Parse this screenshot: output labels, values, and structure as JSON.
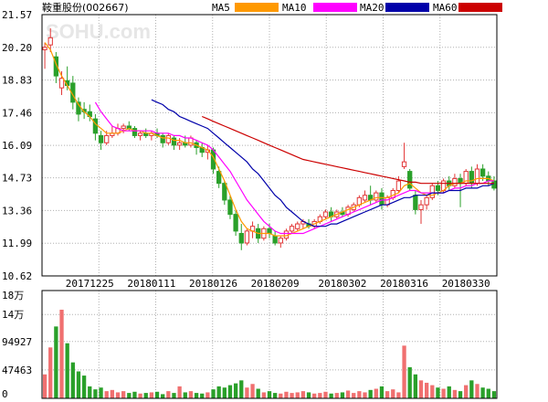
{
  "header": {
    "stock_name": "鞍重股份",
    "stock_code": "(002667)",
    "watermark": "SOHU.com",
    "legend": [
      {
        "label": "MA5",
        "color": "#ff9900"
      },
      {
        "label": "MA10",
        "color": "#ff00ff"
      },
      {
        "label": "MA20",
        "color": "#0000aa"
      },
      {
        "label": "MA60",
        "color": "#cc0000"
      }
    ]
  },
  "chart_data": [
    {
      "type": "candlestick",
      "title": "鞍重股份(002667)",
      "ylim": [
        10.62,
        21.57
      ],
      "y_ticks": [
        "21.57",
        "20.20",
        "18.83",
        "17.46",
        "16.09",
        "14.73",
        "13.36",
        "11.99",
        "10.62"
      ],
      "x_tick_labels": [
        "20171225",
        "20180111",
        "20180126",
        "20180209",
        "20180302",
        "20180316",
        "20180330"
      ],
      "x_tick_index": [
        8,
        19,
        30,
        41,
        53,
        64,
        75
      ],
      "grid": true,
      "up_color": "#e23636",
      "down_color": "#2aa02a",
      "candles": [
        {
          "o": 20.1,
          "h": 20.4,
          "l": 19.3,
          "c": 20.2
        },
        {
          "o": 20.3,
          "h": 21.0,
          "l": 20.0,
          "c": 20.6
        },
        {
          "o": 19.8,
          "h": 20.0,
          "l": 18.7,
          "c": 19.0
        },
        {
          "o": 18.5,
          "h": 19.2,
          "l": 18.2,
          "c": 18.9
        },
        {
          "o": 18.8,
          "h": 19.4,
          "l": 18.4,
          "c": 18.6
        },
        {
          "o": 18.7,
          "h": 19.0,
          "l": 17.6,
          "c": 17.9
        },
        {
          "o": 17.9,
          "h": 18.1,
          "l": 17.1,
          "c": 17.4
        },
        {
          "o": 17.6,
          "h": 17.9,
          "l": 17.2,
          "c": 17.5
        },
        {
          "o": 17.5,
          "h": 17.8,
          "l": 17.1,
          "c": 17.3
        },
        {
          "o": 17.2,
          "h": 17.4,
          "l": 16.3,
          "c": 16.6
        },
        {
          "o": 16.5,
          "h": 16.7,
          "l": 15.9,
          "c": 16.2
        },
        {
          "o": 16.2,
          "h": 16.7,
          "l": 16.1,
          "c": 16.5
        },
        {
          "o": 16.5,
          "h": 16.9,
          "l": 16.4,
          "c": 16.6
        },
        {
          "o": 16.6,
          "h": 17.0,
          "l": 16.5,
          "c": 16.8
        },
        {
          "o": 16.8,
          "h": 17.0,
          "l": 16.6,
          "c": 16.9
        },
        {
          "o": 16.9,
          "h": 17.1,
          "l": 16.7,
          "c": 16.8
        },
        {
          "o": 16.8,
          "h": 16.9,
          "l": 16.4,
          "c": 16.5
        },
        {
          "o": 16.5,
          "h": 16.7,
          "l": 16.3,
          "c": 16.6
        },
        {
          "o": 16.6,
          "h": 16.8,
          "l": 16.4,
          "c": 16.5
        },
        {
          "o": 16.5,
          "h": 16.7,
          "l": 16.3,
          "c": 16.6
        },
        {
          "o": 16.6,
          "h": 16.8,
          "l": 16.4,
          "c": 16.5
        },
        {
          "o": 16.5,
          "h": 16.6,
          "l": 16.0,
          "c": 16.2
        },
        {
          "o": 16.2,
          "h": 16.6,
          "l": 16.1,
          "c": 16.5
        },
        {
          "o": 16.4,
          "h": 16.5,
          "l": 15.9,
          "c": 16.1
        },
        {
          "o": 16.1,
          "h": 16.4,
          "l": 15.9,
          "c": 16.2
        },
        {
          "o": 16.2,
          "h": 16.5,
          "l": 16.0,
          "c": 16.1
        },
        {
          "o": 16.1,
          "h": 16.5,
          "l": 16.0,
          "c": 16.4
        },
        {
          "o": 16.2,
          "h": 16.3,
          "l": 15.7,
          "c": 16.0
        },
        {
          "o": 16.0,
          "h": 16.2,
          "l": 15.6,
          "c": 15.8
        },
        {
          "o": 15.8,
          "h": 16.1,
          "l": 15.5,
          "c": 15.9
        },
        {
          "o": 15.9,
          "h": 16.0,
          "l": 14.9,
          "c": 15.1
        },
        {
          "o": 15.0,
          "h": 15.2,
          "l": 14.3,
          "c": 14.5
        },
        {
          "o": 14.5,
          "h": 14.6,
          "l": 13.6,
          "c": 13.8
        },
        {
          "o": 13.8,
          "h": 14.0,
          "l": 13.0,
          "c": 13.2
        },
        {
          "o": 13.2,
          "h": 13.4,
          "l": 12.3,
          "c": 12.5
        },
        {
          "o": 12.4,
          "h": 12.8,
          "l": 11.7,
          "c": 12.0
        },
        {
          "o": 12.0,
          "h": 12.6,
          "l": 11.9,
          "c": 12.5
        },
        {
          "o": 12.5,
          "h": 12.9,
          "l": 12.2,
          "c": 12.7
        },
        {
          "o": 12.6,
          "h": 12.8,
          "l": 12.0,
          "c": 12.2
        },
        {
          "o": 12.2,
          "h": 12.7,
          "l": 12.1,
          "c": 12.6
        },
        {
          "o": 12.6,
          "h": 12.8,
          "l": 12.2,
          "c": 12.4
        },
        {
          "o": 12.3,
          "h": 12.5,
          "l": 11.9,
          "c": 12.0
        },
        {
          "o": 12.0,
          "h": 12.3,
          "l": 11.8,
          "c": 12.2
        },
        {
          "o": 12.2,
          "h": 12.6,
          "l": 12.1,
          "c": 12.5
        },
        {
          "o": 12.5,
          "h": 12.8,
          "l": 12.4,
          "c": 12.7
        },
        {
          "o": 12.6,
          "h": 12.9,
          "l": 12.5,
          "c": 12.8
        },
        {
          "o": 12.8,
          "h": 13.0,
          "l": 12.6,
          "c": 12.9
        },
        {
          "o": 12.8,
          "h": 13.0,
          "l": 12.6,
          "c": 12.7
        },
        {
          "o": 12.7,
          "h": 13.0,
          "l": 12.6,
          "c": 12.9
        },
        {
          "o": 12.9,
          "h": 13.2,
          "l": 12.8,
          "c": 13.1
        },
        {
          "o": 13.1,
          "h": 13.4,
          "l": 13.0,
          "c": 13.3
        },
        {
          "o": 13.3,
          "h": 13.5,
          "l": 12.9,
          "c": 13.1
        },
        {
          "o": 13.1,
          "h": 13.4,
          "l": 13.0,
          "c": 13.3
        },
        {
          "o": 13.3,
          "h": 13.5,
          "l": 13.1,
          "c": 13.2
        },
        {
          "o": 13.2,
          "h": 13.6,
          "l": 13.1,
          "c": 13.5
        },
        {
          "o": 13.4,
          "h": 13.7,
          "l": 13.3,
          "c": 13.6
        },
        {
          "o": 13.6,
          "h": 14.0,
          "l": 13.5,
          "c": 13.9
        },
        {
          "o": 13.8,
          "h": 14.2,
          "l": 13.7,
          "c": 14.0
        },
        {
          "o": 14.0,
          "h": 14.4,
          "l": 13.6,
          "c": 13.8
        },
        {
          "o": 13.8,
          "h": 14.2,
          "l": 13.7,
          "c": 14.1
        },
        {
          "o": 14.1,
          "h": 14.3,
          "l": 13.4,
          "c": 13.6
        },
        {
          "o": 13.6,
          "h": 14.0,
          "l": 13.5,
          "c": 13.9
        },
        {
          "o": 13.9,
          "h": 14.3,
          "l": 13.8,
          "c": 14.2
        },
        {
          "o": 14.2,
          "h": 14.8,
          "l": 14.1,
          "c": 14.6
        },
        {
          "o": 15.2,
          "h": 16.2,
          "l": 15.1,
          "c": 15.4
        },
        {
          "o": 15.0,
          "h": 15.1,
          "l": 14.2,
          "c": 14.3
        },
        {
          "o": 14.0,
          "h": 14.2,
          "l": 13.2,
          "c": 13.4
        },
        {
          "o": 13.4,
          "h": 13.8,
          "l": 12.8,
          "c": 13.6
        },
        {
          "o": 13.6,
          "h": 14.0,
          "l": 13.4,
          "c": 13.9
        },
        {
          "o": 13.9,
          "h": 14.5,
          "l": 13.8,
          "c": 14.4
        },
        {
          "o": 14.4,
          "h": 14.6,
          "l": 14.0,
          "c": 14.2
        },
        {
          "o": 14.2,
          "h": 14.7,
          "l": 14.1,
          "c": 14.6
        },
        {
          "o": 14.6,
          "h": 14.8,
          "l": 14.2,
          "c": 14.4
        },
        {
          "o": 14.4,
          "h": 14.9,
          "l": 14.3,
          "c": 14.7
        },
        {
          "o": 14.7,
          "h": 14.9,
          "l": 13.5,
          "c": 14.5
        },
        {
          "o": 14.5,
          "h": 15.1,
          "l": 14.4,
          "c": 15.0
        },
        {
          "o": 15.0,
          "h": 15.2,
          "l": 14.3,
          "c": 14.5
        },
        {
          "o": 14.5,
          "h": 15.3,
          "l": 14.4,
          "c": 15.1
        },
        {
          "o": 15.1,
          "h": 15.3,
          "l": 14.6,
          "c": 14.8
        },
        {
          "o": 14.8,
          "h": 15.0,
          "l": 14.4,
          "c": 14.6
        },
        {
          "o": 14.6,
          "h": 14.8,
          "l": 14.2,
          "c": 14.3
        }
      ],
      "series": [
        {
          "name": "MA5",
          "color": "#ff9900",
          "values": [
            20.4,
            20.1,
            19.5,
            19.0,
            18.6,
            18.2,
            17.8,
            17.5,
            17.3,
            17.0,
            16.8,
            16.6,
            16.6,
            16.6,
            16.7,
            16.8,
            16.7,
            16.7,
            16.6,
            16.6,
            16.5,
            16.4,
            16.4,
            16.3,
            16.3,
            16.2,
            16.2,
            16.1,
            16.0,
            15.9,
            15.6,
            15.1,
            14.6,
            14.0,
            13.4,
            12.9,
            12.6,
            12.5,
            12.4,
            12.4,
            12.4,
            12.3,
            12.3,
            12.3,
            12.4,
            12.5,
            12.6,
            12.7,
            12.8,
            12.9,
            13.0,
            13.1,
            13.2,
            13.3,
            13.4,
            13.5,
            13.6,
            13.7,
            13.8,
            13.9,
            13.9,
            13.9,
            14.0,
            14.1,
            14.4,
            14.5,
            14.3,
            14.1,
            14.0,
            14.0,
            14.1,
            14.2,
            14.4,
            14.5,
            14.5,
            14.6,
            14.6,
            14.7,
            14.7,
            14.7,
            14.6
          ]
        },
        {
          "name": "MA10",
          "color": "#ff00ff",
          "values": [
            null,
            null,
            null,
            null,
            null,
            null,
            null,
            null,
            null,
            17.9,
            17.5,
            17.2,
            16.9,
            16.8,
            16.7,
            16.7,
            16.7,
            16.7,
            16.7,
            16.7,
            16.6,
            16.6,
            16.6,
            16.5,
            16.5,
            16.4,
            16.4,
            16.3,
            16.2,
            16.1,
            15.9,
            15.6,
            15.3,
            15.0,
            14.6,
            14.2,
            13.8,
            13.5,
            13.2,
            12.9,
            12.7,
            12.5,
            12.4,
            12.4,
            12.4,
            12.4,
            12.4,
            12.5,
            12.6,
            12.7,
            12.8,
            12.9,
            13.0,
            13.1,
            13.2,
            13.3,
            13.4,
            13.5,
            13.6,
            13.7,
            13.8,
            13.8,
            13.9,
            14.0,
            14.1,
            14.2,
            14.2,
            14.1,
            14.1,
            14.1,
            14.1,
            14.1,
            14.2,
            14.3,
            14.3,
            14.4,
            14.4,
            14.5,
            14.5,
            14.6,
            14.6
          ]
        },
        {
          "name": "MA20",
          "color": "#0000aa",
          "values": [
            null,
            null,
            null,
            null,
            null,
            null,
            null,
            null,
            null,
            null,
            null,
            null,
            null,
            null,
            null,
            null,
            null,
            null,
            null,
            18.0,
            17.9,
            17.8,
            17.6,
            17.5,
            17.3,
            17.2,
            17.1,
            17.0,
            16.9,
            16.8,
            16.6,
            16.4,
            16.2,
            16.0,
            15.8,
            15.6,
            15.4,
            15.1,
            14.9,
            14.6,
            14.3,
            14.0,
            13.8,
            13.5,
            13.3,
            13.1,
            12.9,
            12.8,
            12.7,
            12.7,
            12.7,
            12.8,
            12.8,
            12.9,
            13.0,
            13.1,
            13.2,
            13.3,
            13.4,
            13.5,
            13.6,
            13.6,
            13.7,
            13.8,
            13.9,
            13.9,
            14.0,
            14.0,
            14.0,
            14.1,
            14.1,
            14.1,
            14.2,
            14.2,
            14.2,
            14.3,
            14.3,
            14.3,
            14.4,
            14.4,
            14.5
          ]
        },
        {
          "name": "MA60",
          "color": "#cc0000",
          "values": [
            null,
            null,
            null,
            null,
            null,
            null,
            null,
            null,
            null,
            null,
            null,
            null,
            null,
            null,
            null,
            null,
            null,
            null,
            null,
            null,
            null,
            null,
            null,
            null,
            null,
            null,
            null,
            null,
            17.3,
            17.2,
            17.1,
            17.0,
            16.9,
            16.8,
            16.7,
            16.6,
            16.5,
            16.4,
            16.3,
            16.2,
            16.1,
            16.0,
            15.9,
            15.8,
            15.7,
            15.6,
            15.5,
            15.45,
            15.4,
            15.35,
            15.3,
            15.25,
            15.2,
            15.15,
            15.1,
            15.05,
            15.0,
            14.95,
            14.9,
            14.85,
            14.8,
            14.75,
            14.7,
            14.65,
            14.6,
            14.55,
            14.55,
            14.5,
            14.5,
            14.5,
            14.5,
            14.5,
            14.5,
            14.5,
            14.5,
            14.5,
            14.5,
            14.5,
            14.5,
            14.5,
            14.5
          ]
        }
      ]
    },
    {
      "type": "bar",
      "title": "volume",
      "ylim": [
        0,
        180000
      ],
      "y_ticks": [
        "18万",
        "14万",
        "94927",
        "47463",
        "0"
      ],
      "y_tick_values": [
        180000,
        140000,
        94927,
        47463,
        0
      ],
      "values": [
        40000,
        85000,
        120000,
        148000,
        92000,
        60000,
        45000,
        38000,
        20000,
        15000,
        18000,
        12000,
        14000,
        10000,
        12000,
        9000,
        11000,
        8000,
        9000,
        10000,
        11000,
        7000,
        12000,
        9000,
        20000,
        10000,
        12000,
        9000,
        8000,
        10000,
        15000,
        20000,
        18000,
        22000,
        25000,
        30000,
        18000,
        24000,
        16000,
        10000,
        12000,
        9000,
        8000,
        11000,
        9000,
        10000,
        12000,
        10000,
        8000,
        9000,
        11000,
        8000,
        9000,
        10000,
        13000,
        9000,
        12000,
        10000,
        14000,
        16000,
        20000,
        12000,
        15000,
        10000,
        88000,
        52000,
        40000,
        30000,
        26000,
        22000,
        18000,
        16000,
        20000,
        14000,
        12000,
        22000,
        30000,
        24000,
        18000,
        16000,
        12000
      ]
    }
  ]
}
